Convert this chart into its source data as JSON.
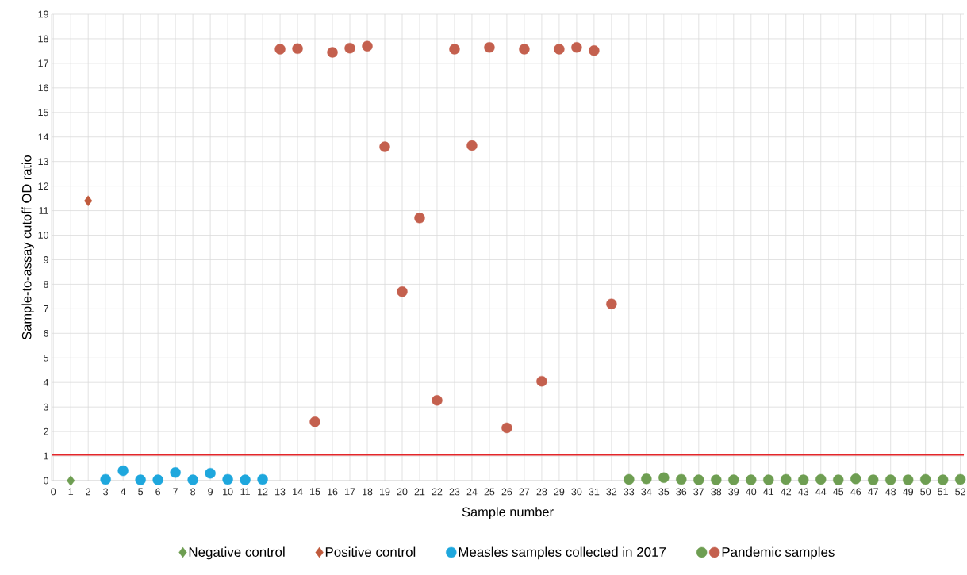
{
  "chart_data": {
    "type": "scatter",
    "xlabel": "Sample number",
    "ylabel": "Sample-to-assay cutoff OD ratio",
    "xlim": [
      -0.1,
      52.2
    ],
    "ylim": [
      0,
      19
    ],
    "xticks": [
      0,
      1,
      2,
      3,
      4,
      5,
      6,
      7,
      8,
      9,
      10,
      11,
      12,
      13,
      14,
      15,
      16,
      17,
      18,
      19,
      20,
      21,
      22,
      23,
      24,
      25,
      26,
      27,
      28,
      29,
      30,
      31,
      32,
      33,
      34,
      35,
      36,
      37,
      38,
      39,
      40,
      41,
      42,
      43,
      44,
      45,
      46,
      47,
      48,
      49,
      50,
      51,
      52
    ],
    "yticks": [
      0,
      1,
      2,
      3,
      4,
      5,
      6,
      7,
      8,
      9,
      10,
      11,
      12,
      13,
      14,
      15,
      16,
      17,
      18,
      19
    ],
    "grid": true,
    "legend": "bottom",
    "ref_lines": [
      {
        "axis": "y",
        "value": 1.05,
        "color": "#e4262a"
      }
    ],
    "series": [
      {
        "name": "Negative control",
        "color": "#6e9e52",
        "marker": "diamond",
        "x": [
          1
        ],
        "values": [
          0.0
        ]
      },
      {
        "name": "Positive control",
        "color": "#c05a3c",
        "marker": "diamond",
        "x": [
          2
        ],
        "values": [
          11.4
        ]
      },
      {
        "name": "Measles samples collected in 2017",
        "color": "#1ea7dd",
        "marker": "circle",
        "x": [
          3,
          4,
          5,
          6,
          7,
          8,
          9,
          10,
          11,
          12
        ],
        "values": [
          0.05,
          0.4,
          0.03,
          0.03,
          0.33,
          0.03,
          0.3,
          0.05,
          0.03,
          0.05
        ]
      },
      {
        "color": "#6e9e52",
        "marker": "circle",
        "x": [
          33,
          34,
          35,
          36,
          37,
          38,
          39,
          40,
          41,
          42,
          43,
          44,
          45,
          46,
          47,
          48,
          49,
          50,
          51,
          52
        ],
        "values": [
          0.05,
          0.07,
          0.12,
          0.05,
          0.03,
          0.03,
          0.03,
          0.03,
          0.03,
          0.05,
          0.03,
          0.05,
          0.03,
          0.07,
          0.03,
          0.03,
          0.03,
          0.05,
          0.03,
          0.05
        ]
      },
      {
        "name": "Pandemic samples",
        "color": "#c4604e",
        "marker": "circle",
        "x": [
          13,
          14,
          15,
          16,
          17,
          18,
          19,
          20,
          21,
          22,
          23,
          24,
          25,
          26,
          27,
          28,
          29,
          30,
          31,
          32
        ],
        "values": [
          17.58,
          17.6,
          2.4,
          17.45,
          17.62,
          17.7,
          13.6,
          7.7,
          10.7,
          3.27,
          17.58,
          13.65,
          17.65,
          2.15,
          17.58,
          4.05,
          17.58,
          17.65,
          17.52,
          7.2
        ]
      }
    ]
  }
}
